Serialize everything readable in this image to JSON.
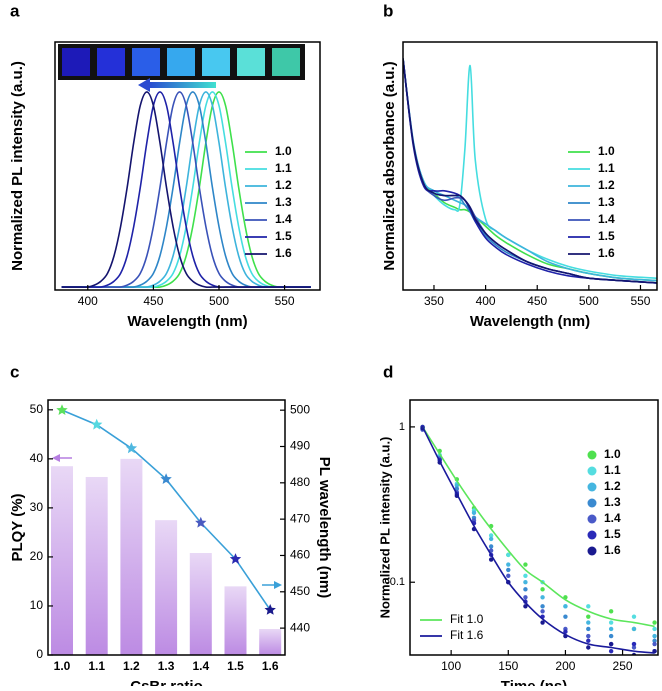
{
  "chart_data": [
    {
      "type": "line",
      "panel_label": "a",
      "xlabel": "Wavelength (nm)",
      "ylabel": "Normalized PL intensity (a.u.)",
      "xlim": [
        375,
        577
      ],
      "xticks": [
        400,
        450,
        500,
        550
      ],
      "ylim": [
        -0.015,
        1.256
      ],
      "x": [
        380,
        385,
        390,
        395,
        400,
        405,
        410,
        415,
        420,
        425,
        430,
        435,
        440,
        445,
        450,
        455,
        460,
        465,
        470,
        475,
        480,
        485,
        490,
        495,
        500,
        505,
        510,
        515,
        520,
        525,
        530,
        535,
        540,
        545,
        550,
        555,
        560,
        565,
        570
      ],
      "series": [
        {
          "name": "1.0",
          "color": "#3fe04c",
          "values": [
            0,
            0,
            0,
            0,
            0,
            0,
            0,
            0,
            0,
            0,
            0,
            0,
            0,
            0,
            0,
            0,
            0.01,
            0.03,
            0.07,
            0.16,
            0.31,
            0.51,
            0.74,
            0.93,
            1,
            0.93,
            0.74,
            0.51,
            0.31,
            0.16,
            0.07,
            0.03,
            0.01,
            0,
            0,
            0,
            0,
            0,
            0
          ]
        },
        {
          "name": "1.1",
          "color": "#45dde0",
          "values": [
            0,
            0,
            0,
            0,
            0,
            0,
            0,
            0,
            0,
            0,
            0,
            0,
            0,
            0,
            0,
            0.01,
            0.03,
            0.07,
            0.16,
            0.31,
            0.51,
            0.74,
            0.93,
            1,
            0.93,
            0.74,
            0.51,
            0.31,
            0.16,
            0.07,
            0.03,
            0.01,
            0,
            0,
            0,
            0,
            0,
            0,
            0
          ]
        },
        {
          "name": "1.2",
          "color": "#3db4dc",
          "values": [
            0,
            0,
            0,
            0,
            0,
            0,
            0,
            0,
            0,
            0,
            0,
            0,
            0,
            0,
            0.01,
            0.03,
            0.07,
            0.16,
            0.31,
            0.51,
            0.74,
            0.93,
            1,
            0.93,
            0.74,
            0.51,
            0.31,
            0.16,
            0.07,
            0.03,
            0.01,
            0,
            0,
            0,
            0,
            0,
            0,
            0,
            0
          ]
        },
        {
          "name": "1.3",
          "color": "#2e86c8",
          "values": [
            0,
            0,
            0,
            0,
            0,
            0,
            0,
            0,
            0,
            0,
            0,
            0,
            0.01,
            0.03,
            0.07,
            0.16,
            0.31,
            0.51,
            0.74,
            0.93,
            1,
            0.93,
            0.74,
            0.51,
            0.31,
            0.16,
            0.07,
            0.03,
            0.01,
            0,
            0,
            0,
            0,
            0,
            0,
            0,
            0,
            0,
            0
          ]
        },
        {
          "name": "1.4",
          "color": "#3a52b8",
          "values": [
            0,
            0,
            0,
            0,
            0,
            0,
            0,
            0,
            0,
            0,
            0.01,
            0.03,
            0.07,
            0.16,
            0.31,
            0.51,
            0.74,
            0.93,
            1,
            0.93,
            0.74,
            0.51,
            0.31,
            0.16,
            0.07,
            0.03,
            0.01,
            0,
            0,
            0,
            0,
            0,
            0,
            0,
            0,
            0,
            0,
            0,
            0
          ]
        },
        {
          "name": "1.5",
          "color": "#1f22a8",
          "values": [
            0,
            0,
            0,
            0,
            0,
            0,
            0,
            0.01,
            0.03,
            0.07,
            0.16,
            0.31,
            0.51,
            0.74,
            0.93,
            1,
            0.93,
            0.74,
            0.51,
            0.31,
            0.16,
            0.07,
            0.03,
            0.01,
            0,
            0,
            0,
            0,
            0,
            0,
            0,
            0,
            0,
            0,
            0,
            0,
            0,
            0,
            0
          ]
        },
        {
          "name": "1.6",
          "color": "#14146e",
          "values": [
            0,
            0,
            0,
            0,
            0,
            0.01,
            0.03,
            0.07,
            0.16,
            0.31,
            0.51,
            0.74,
            0.93,
            1,
            0.93,
            0.74,
            0.51,
            0.31,
            0.16,
            0.07,
            0.03,
            0.01,
            0,
            0,
            0,
            0,
            0,
            0,
            0,
            0,
            0,
            0,
            0,
            0,
            0,
            0,
            0,
            0,
            0
          ]
        }
      ]
    },
    {
      "type": "line",
      "panel_label": "b",
      "xlabel": "Wavelength (nm)",
      "ylabel": "Normalized absorbance (a.u.)",
      "xlim": [
        320,
        566
      ],
      "xticks": [
        350,
        400,
        450,
        500,
        550
      ],
      "ylim": [
        0,
        1.05
      ],
      "x": [
        320,
        330,
        340,
        350,
        360,
        370,
        375,
        380,
        385,
        390,
        400,
        410,
        420,
        440,
        460,
        480,
        500,
        530,
        566
      ],
      "series": [
        {
          "name": "1.0",
          "color": "#3fe04c",
          "values": [
            0.98,
            0.62,
            0.46,
            0.41,
            0.37,
            0.35,
            0.34,
            0.34,
            0.33,
            0.31,
            0.27,
            0.23,
            0.2,
            0.15,
            0.11,
            0.09,
            0.07,
            0.05,
            0.04
          ]
        },
        {
          "name": "1.1",
          "color": "#45dde0",
          "values": [
            0.98,
            0.62,
            0.45,
            0.4,
            0.36,
            0.34,
            0.36,
            0.6,
            0.95,
            0.55,
            0.3,
            0.25,
            0.22,
            0.17,
            0.13,
            0.1,
            0.08,
            0.06,
            0.05
          ]
        },
        {
          "name": "1.2",
          "color": "#3db4dc",
          "values": [
            0.98,
            0.63,
            0.46,
            0.42,
            0.4,
            0.38,
            0.37,
            0.36,
            0.34,
            0.31,
            0.28,
            0.25,
            0.22,
            0.17,
            0.12,
            0.09,
            0.07,
            0.05,
            0.04
          ]
        },
        {
          "name": "1.3",
          "color": "#2e86c8",
          "values": [
            0.98,
            0.62,
            0.45,
            0.41,
            0.4,
            0.4,
            0.39,
            0.36,
            0.33,
            0.29,
            0.23,
            0.19,
            0.16,
            0.12,
            0.09,
            0.07,
            0.05,
            0.04,
            0.03
          ]
        },
        {
          "name": "1.4",
          "color": "#3a52b8",
          "values": [
            0.98,
            0.62,
            0.45,
            0.4,
            0.38,
            0.39,
            0.39,
            0.38,
            0.35,
            0.31,
            0.24,
            0.2,
            0.17,
            0.12,
            0.09,
            0.07,
            0.05,
            0.04,
            0.03
          ]
        },
        {
          "name": "1.5",
          "color": "#1f22a8",
          "values": [
            0.98,
            0.61,
            0.44,
            0.42,
            0.42,
            0.41,
            0.4,
            0.38,
            0.34,
            0.29,
            0.22,
            0.18,
            0.15,
            0.11,
            0.08,
            0.06,
            0.05,
            0.04,
            0.03
          ]
        },
        {
          "name": "1.6",
          "color": "#14146e",
          "values": [
            0.98,
            0.62,
            0.45,
            0.41,
            0.4,
            0.4,
            0.4,
            0.38,
            0.35,
            0.3,
            0.24,
            0.2,
            0.17,
            0.12,
            0.09,
            0.07,
            0.05,
            0.04,
            0.03
          ]
        }
      ]
    },
    {
      "type": "bar",
      "panel_label": "c",
      "xlabel": "CsBr ratio",
      "ylabel": "PLQY (%)",
      "y2label": "PL wavelength (nm)",
      "categories": [
        "1.0",
        "1.1",
        "1.2",
        "1.3",
        "1.4",
        "1.5",
        "1.6"
      ],
      "ylim": [
        0,
        52
      ],
      "yticks": [
        0,
        10,
        20,
        30,
        40,
        50
      ],
      "y2lim": [
        432.6,
        502.8
      ],
      "y2ticks": [
        440,
        450,
        460,
        470,
        480,
        490,
        500
      ],
      "series": [
        {
          "type": "bar",
          "color": "#b57ee0",
          "values": [
            38.5,
            36.3,
            40,
            27.5,
            20.8,
            14,
            5.3
          ]
        },
        {
          "type": "line",
          "axis": "y2",
          "color": "#3aa0d8",
          "marker_colors": [
            "#5be05b",
            "#55d8e0",
            "#4fb8e0",
            "#3a8ad0",
            "#4a5ac0",
            "#2a2ab0",
            "#1a1a8c"
          ],
          "values": [
            500,
            496,
            489.5,
            481,
            469,
            459,
            445
          ]
        }
      ]
    },
    {
      "type": "scatter",
      "panel_label": "d",
      "xlabel": "Time (ns)",
      "ylabel": "Normalized PL intensity (a.u.)",
      "log_y": true,
      "xlim": [
        64,
        281
      ],
      "xticks": [
        100,
        150,
        200,
        250
      ],
      "ylim": [
        0.034,
        1.49
      ],
      "yticks": [
        0.1,
        1
      ],
      "x": [
        75,
        90,
        105,
        120,
        135,
        150,
        165,
        180,
        200,
        220,
        240,
        260,
        278
      ],
      "series": [
        {
          "name": "1.0",
          "color": "#4fe04f",
          "values": [
            1.0,
            0.7,
            0.46,
            0.3,
            0.23,
            0.15,
            0.13,
            0.09,
            0.08,
            0.06,
            0.065,
            0.05,
            0.055
          ]
        },
        {
          "name": "1.1",
          "color": "#55dde0",
          "values": [
            0.98,
            0.66,
            0.43,
            0.29,
            0.2,
            0.15,
            0.11,
            0.1,
            0.07,
            0.07,
            0.055,
            0.06,
            0.05
          ]
        },
        {
          "name": "1.2",
          "color": "#45b6e0",
          "values": [
            0.97,
            0.64,
            0.42,
            0.28,
            0.19,
            0.13,
            0.1,
            0.08,
            0.07,
            0.055,
            0.05,
            0.05,
            0.045
          ]
        },
        {
          "name": "1.3",
          "color": "#3a8ad0",
          "values": [
            0.99,
            0.63,
            0.4,
            0.26,
            0.17,
            0.12,
            0.09,
            0.07,
            0.06,
            0.05,
            0.045,
            0.04,
            0.042
          ]
        },
        {
          "name": "1.4",
          "color": "#4a5ac8",
          "values": [
            0.96,
            0.62,
            0.38,
            0.25,
            0.16,
            0.11,
            0.08,
            0.065,
            0.05,
            0.045,
            0.04,
            0.038,
            0.04
          ]
        },
        {
          "name": "1.5",
          "color": "#2a2ab8",
          "values": [
            1.0,
            0.61,
            0.37,
            0.24,
            0.15,
            0.1,
            0.075,
            0.06,
            0.048,
            0.042,
            0.036,
            0.04,
            0.036
          ]
        },
        {
          "name": "1.6",
          "color": "#1a1a90",
          "values": [
            0.98,
            0.59,
            0.36,
            0.22,
            0.14,
            0.1,
            0.07,
            0.055,
            0.045,
            0.038,
            0.04,
            0.034,
            0.036
          ]
        },
        {
          "name": "Fit 1.0",
          "type": "line",
          "color": "#5ce65c",
          "values": [
            1.0,
            0.67,
            0.45,
            0.31,
            0.22,
            0.16,
            0.12,
            0.1,
            0.077,
            0.065,
            0.058,
            0.055,
            0.052
          ]
        },
        {
          "name": "Fit 1.6",
          "type": "line",
          "color": "#1a1a9c",
          "values": [
            1.0,
            0.6,
            0.37,
            0.23,
            0.15,
            0.1,
            0.074,
            0.058,
            0.046,
            0.04,
            0.038,
            0.036,
            0.035
          ]
        }
      ]
    }
  ]
}
